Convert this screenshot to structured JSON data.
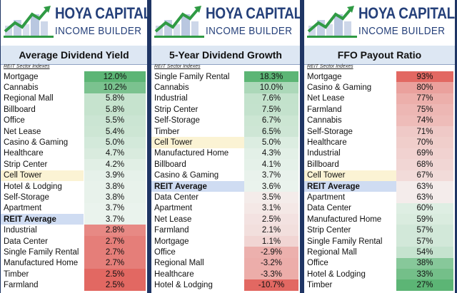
{
  "brand": {
    "line1": "HOYA CAPITAL",
    "line2": "INCOME BUILDER"
  },
  "subtitle": "REIT Sector Indexes",
  "chart_data": [
    {
      "type": "table",
      "title": "Average Dividend Yield",
      "rows": [
        {
          "name": "Mortgage",
          "label": "12.0%",
          "value": 12.0
        },
        {
          "name": "Cannabis",
          "label": "10.2%",
          "value": 10.2
        },
        {
          "name": "Regional Mall",
          "label": "5.8%",
          "value": 5.8
        },
        {
          "name": "Billboard",
          "label": "5.8%",
          "value": 5.8
        },
        {
          "name": "Office",
          "label": "5.5%",
          "value": 5.5
        },
        {
          "name": "Net Lease",
          "label": "5.4%",
          "value": 5.4
        },
        {
          "name": "Casino & Gaming",
          "label": "5.0%",
          "value": 5.0
        },
        {
          "name": "Healthcare",
          "label": "4.7%",
          "value": 4.7
        },
        {
          "name": "Strip Center",
          "label": "4.2%",
          "value": 4.2
        },
        {
          "name": "Cell Tower",
          "label": "3.9%",
          "value": 3.9,
          "highlight": "yellow"
        },
        {
          "name": "Hotel & Lodging",
          "label": "3.8%",
          "value": 3.8
        },
        {
          "name": "Self-Storage",
          "label": "3.8%",
          "value": 3.8
        },
        {
          "name": "Apartment",
          "label": "3.7%",
          "value": 3.7
        },
        {
          "name": "REIT Average",
          "label": "3.7%",
          "value": 3.7,
          "highlight": "blue"
        },
        {
          "name": "Industrial",
          "label": "2.8%",
          "value": 2.8
        },
        {
          "name": "Data Center",
          "label": "2.7%",
          "value": 2.7
        },
        {
          "name": "Single Family Rental",
          "label": "2.7%",
          "value": 2.7
        },
        {
          "name": "Manufactured Home",
          "label": "2.7%",
          "value": 2.7
        },
        {
          "name": "Timber",
          "label": "2.5%",
          "value": 2.5
        },
        {
          "name": "Farmland",
          "label": "2.5%",
          "value": 2.5
        }
      ],
      "scale": "high-is-green"
    },
    {
      "type": "table",
      "title": "5-Year Dividend Growth",
      "rows": [
        {
          "name": "Single Family Rental",
          "label": "18.3%",
          "value": 18.3
        },
        {
          "name": "Cannabis",
          "label": "10.0%",
          "value": 10.0
        },
        {
          "name": "Industrial",
          "label": "7.6%",
          "value": 7.6
        },
        {
          "name": "Strip Center",
          "label": "7.5%",
          "value": 7.5
        },
        {
          "name": "Self-Storage",
          "label": "6.7%",
          "value": 6.7
        },
        {
          "name": "Timber",
          "label": "6.5%",
          "value": 6.5
        },
        {
          "name": "Cell Tower",
          "label": "5.0%",
          "value": 5.0,
          "highlight": "yellow"
        },
        {
          "name": "Manufactured Home",
          "label": "4.3%",
          "value": 4.3
        },
        {
          "name": "Billboard",
          "label": "4.1%",
          "value": 4.1
        },
        {
          "name": "Casino & Gaming",
          "label": "3.7%",
          "value": 3.7
        },
        {
          "name": "REIT Average",
          "label": "3.6%",
          "value": 3.6,
          "highlight": "blue"
        },
        {
          "name": "Data Center",
          "label": "3.5%",
          "value": 3.5
        },
        {
          "name": "Apartment",
          "label": "3.1%",
          "value": 3.1
        },
        {
          "name": "Net Lease",
          "label": "2.5%",
          "value": 2.5
        },
        {
          "name": "Farmland",
          "label": "2.1%",
          "value": 2.1
        },
        {
          "name": "Mortgage",
          "label": "1.1%",
          "value": 1.1
        },
        {
          "name": "Office",
          "label": "-2.9%",
          "value": -2.9
        },
        {
          "name": "Regional Mall",
          "label": "-3.2%",
          "value": -3.2
        },
        {
          "name": "Healthcare",
          "label": "-3.3%",
          "value": -3.3
        },
        {
          "name": "Hotel & Lodging",
          "label": "-10.7%",
          "value": -10.7
        }
      ],
      "scale": "high-is-green"
    },
    {
      "type": "table",
      "title": "FFO Payout Ratio",
      "rows": [
        {
          "name": "Mortgage",
          "label": "93%",
          "value": 93
        },
        {
          "name": "Casino & Gaming",
          "label": "80%",
          "value": 80
        },
        {
          "name": "Net Lease",
          "label": "77%",
          "value": 77
        },
        {
          "name": "Farmland",
          "label": "75%",
          "value": 75
        },
        {
          "name": "Cannabis",
          "label": "74%",
          "value": 74
        },
        {
          "name": "Self-Storage",
          "label": "71%",
          "value": 71
        },
        {
          "name": "Healthcare",
          "label": "70%",
          "value": 70
        },
        {
          "name": "Industrial",
          "label": "69%",
          "value": 69
        },
        {
          "name": "Billboard",
          "label": "68%",
          "value": 68
        },
        {
          "name": "Cell Tower",
          "label": "67%",
          "value": 67,
          "highlight": "yellow"
        },
        {
          "name": "REIT Average",
          "label": "63%",
          "value": 63,
          "highlight": "blue"
        },
        {
          "name": "Apartment",
          "label": "63%",
          "value": 63
        },
        {
          "name": "Data Center",
          "label": "60%",
          "value": 60
        },
        {
          "name": "Manufactured Home",
          "label": "59%",
          "value": 59
        },
        {
          "name": "Strip Center",
          "label": "57%",
          "value": 57
        },
        {
          "name": "Single Family Rental",
          "label": "57%",
          "value": 57
        },
        {
          "name": "Regional Mall",
          "label": "54%",
          "value": 54
        },
        {
          "name": "Office",
          "label": "38%",
          "value": 38
        },
        {
          "name": "Hotel & Lodging",
          "label": "33%",
          "value": 33
        },
        {
          "name": "Timber",
          "label": "27%",
          "value": 27
        }
      ],
      "scale": "high-is-red"
    }
  ],
  "colors": {
    "green": "#5cb575",
    "red": "#e26862",
    "neutral": "#f6f8f7",
    "frame": "#1f3564",
    "brand": "#25407a"
  }
}
